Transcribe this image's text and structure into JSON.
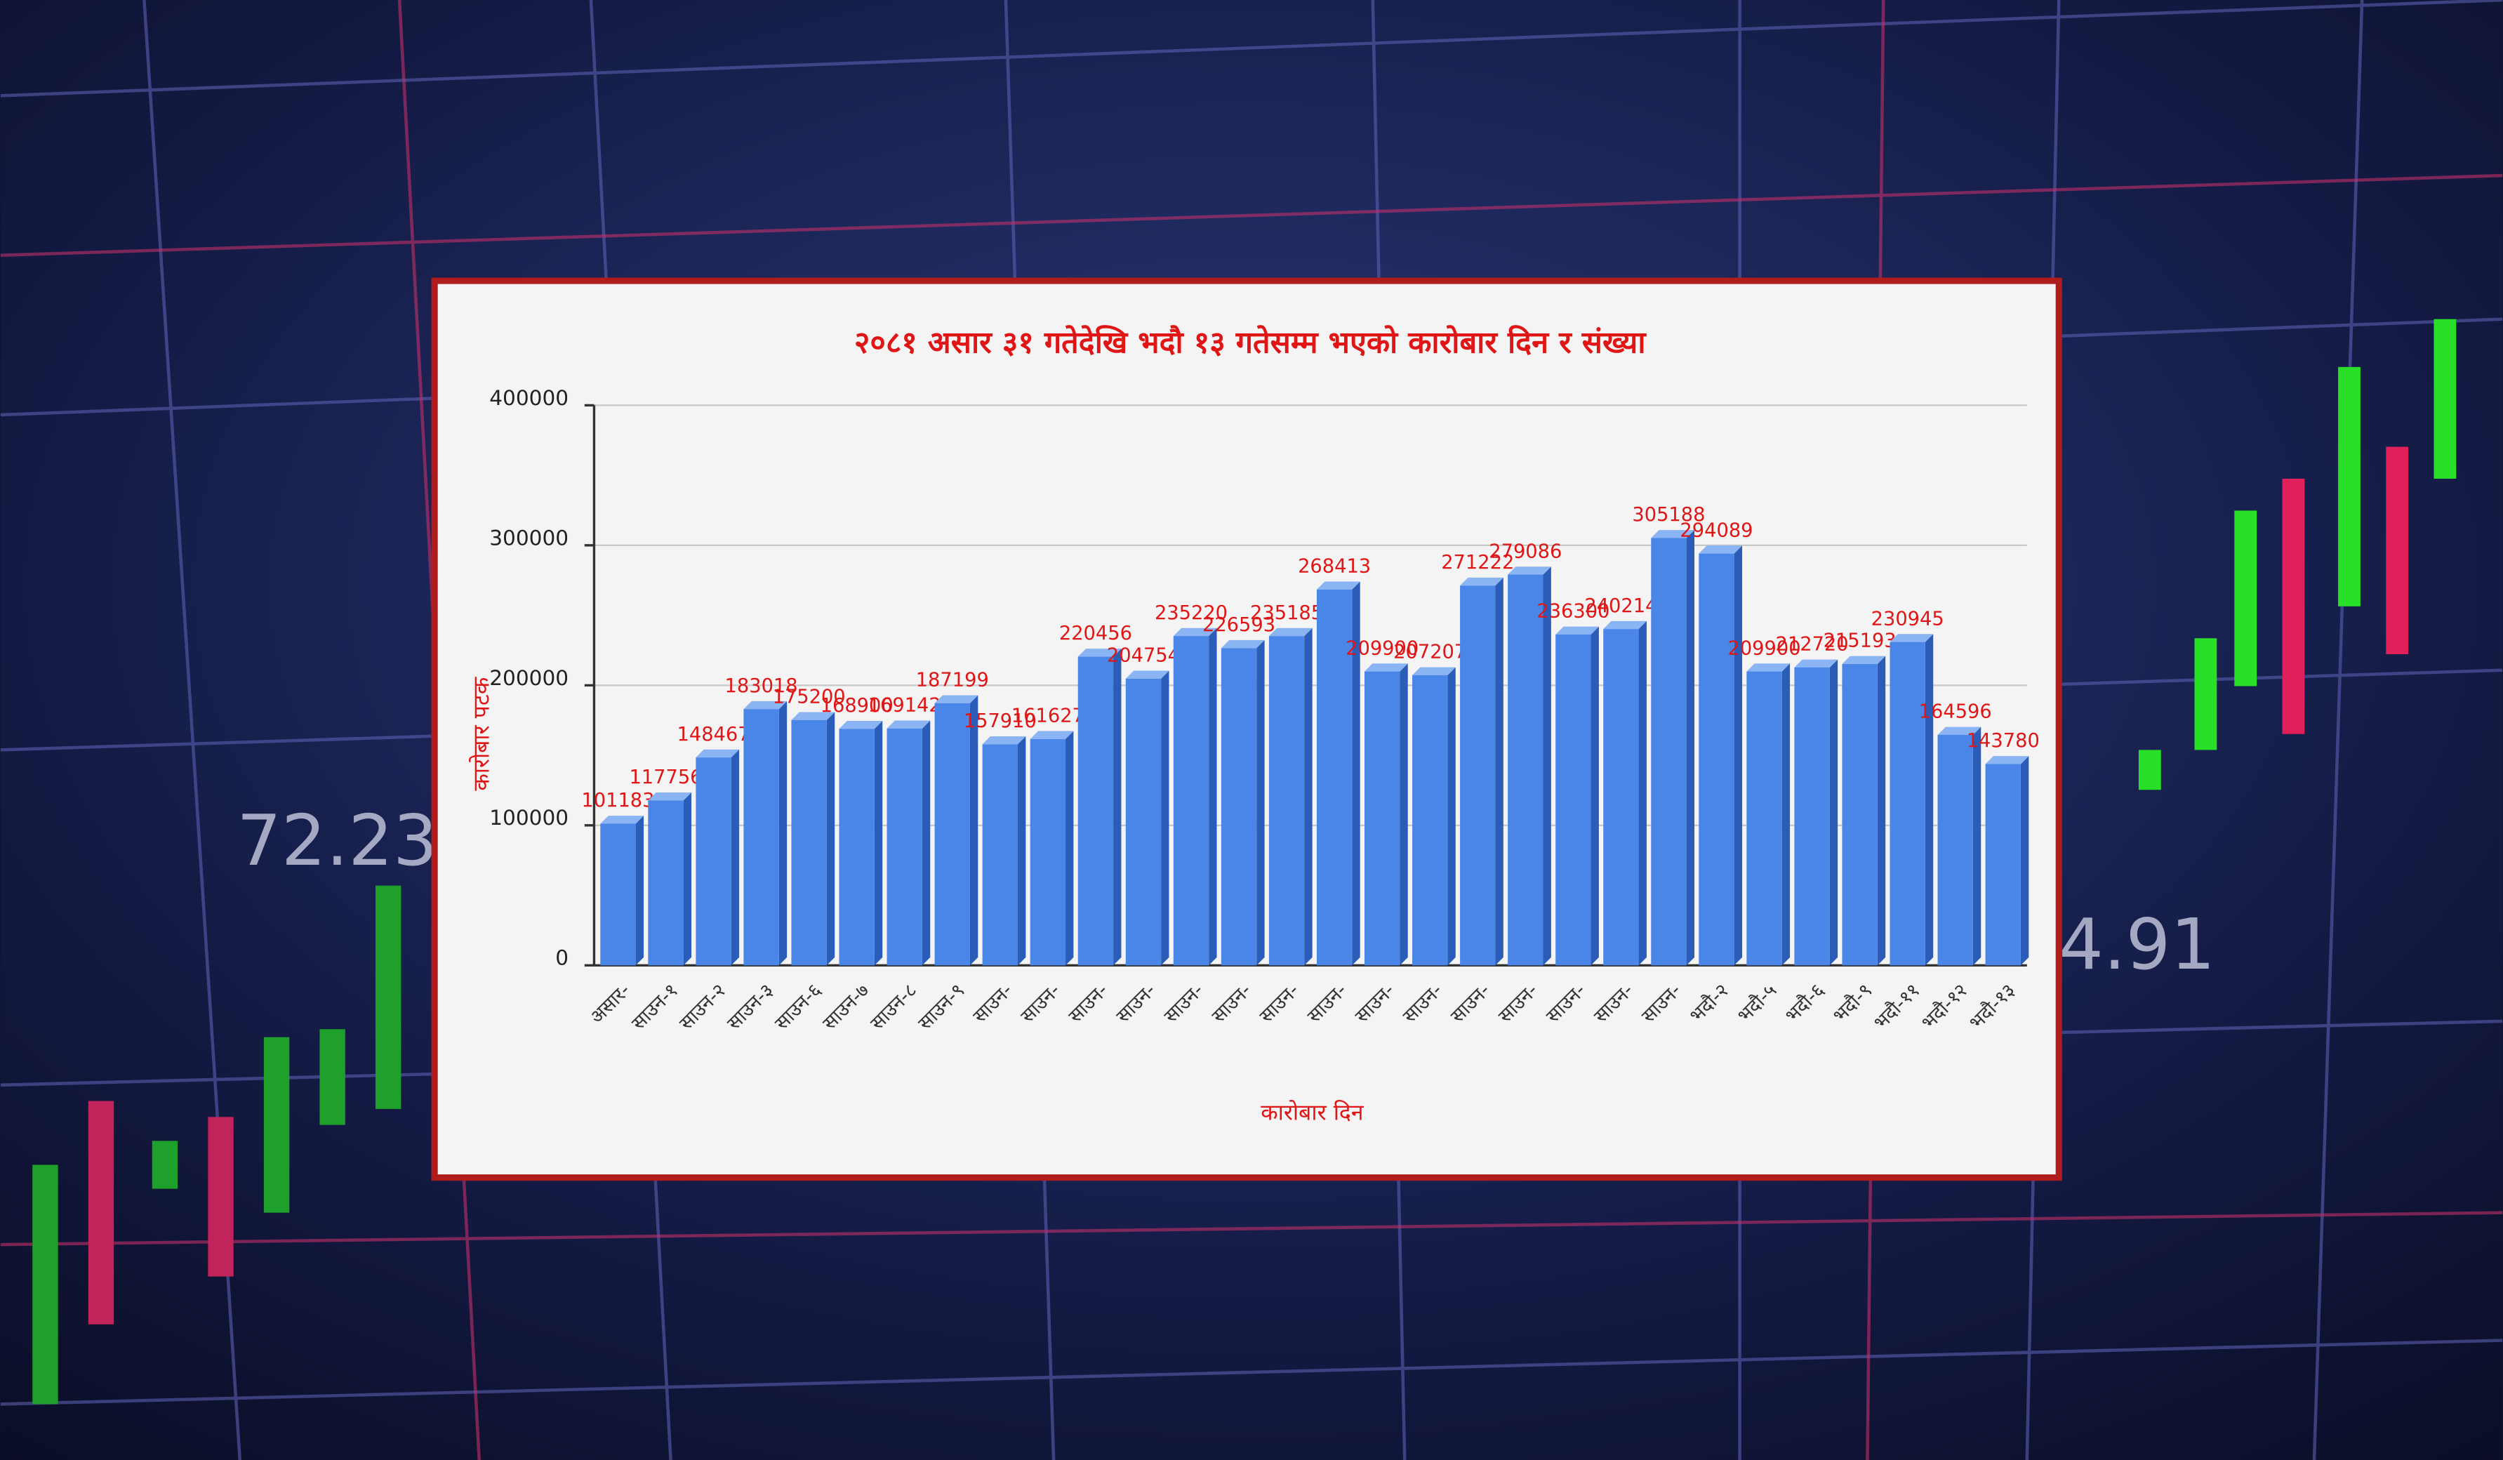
{
  "chart_data": {
    "type": "bar",
    "title": "२०८१ असार ३१ गतेदेखि भदौ १३ गतेसम्म भएको कारोबार दिन र संख्या",
    "xlabel": "कारोबार दिन",
    "ylabel": "कारोबार पटक",
    "categories": [
      "असार-",
      "साउन-१",
      "साउन-२",
      "साउन-३",
      "साउन-६",
      "साउन-७",
      "साउन-८",
      "साउन-९",
      "साउन-",
      "साउन-",
      "साउन-",
      "साउन-",
      "साउन-",
      "साउन-",
      "साउन-",
      "साउन-",
      "साउन-",
      "साउन-",
      "साउन-",
      "साउन-",
      "साउन-",
      "साउन-",
      "साउन-",
      "भदौ-२",
      "भदौ-५",
      "भदौ-६",
      "भदौ-९",
      "भदौ-११",
      "भदौ-१२",
      "भदौ-१३"
    ],
    "values": [
      101183,
      117756,
      148467,
      183018,
      175200,
      168900,
      169142,
      187199,
      157910,
      161627,
      220456,
      204754,
      235220,
      226593,
      235185,
      268413,
      209900,
      207207,
      271222,
      279086,
      236300,
      240214,
      305188,
      294089,
      209900,
      212720,
      215193,
      230945,
      164596,
      143780
    ],
    "color": "#4a86e8",
    "ylim": [
      0,
      400000
    ],
    "yticks": [
      0,
      100000,
      200000,
      300000,
      400000
    ],
    "grid": true
  }
}
